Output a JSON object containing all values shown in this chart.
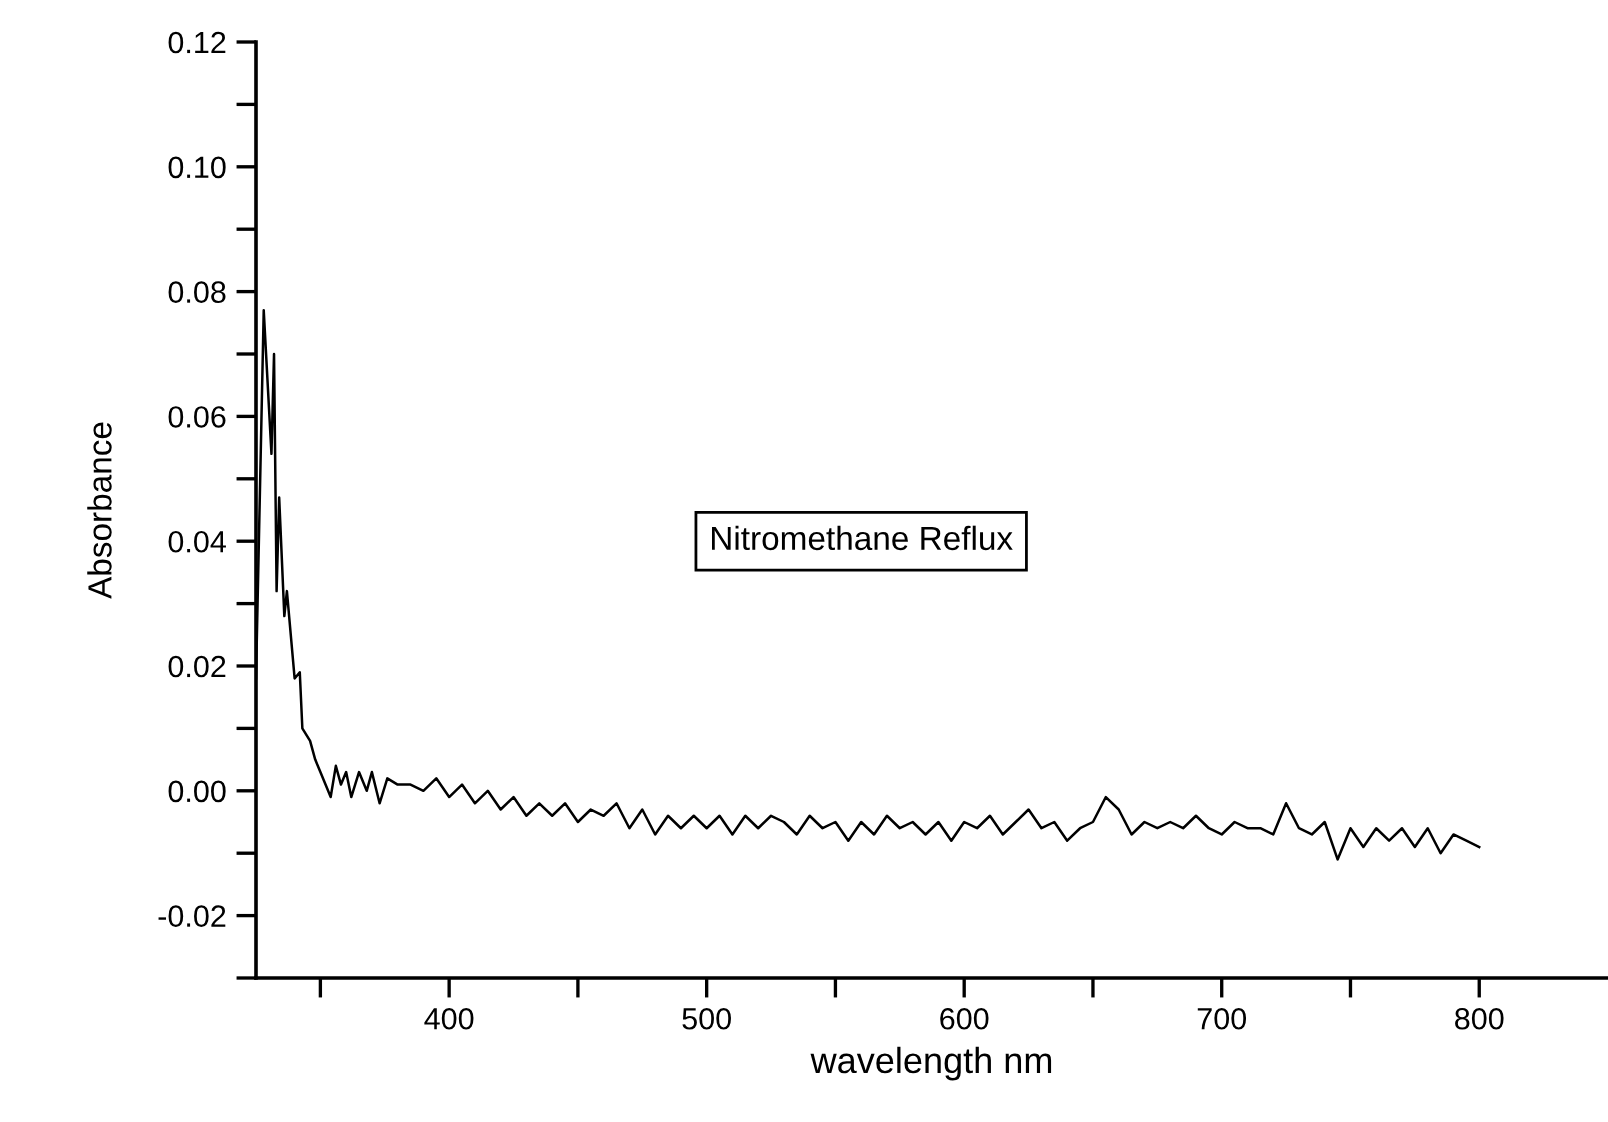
{
  "chart_data": {
    "type": "line",
    "xlabel": "wavelength nm",
    "ylabel": "Absorbance",
    "annotations": [
      "Nitromethane Reflux"
    ],
    "xlim": [
      325,
      850
    ],
    "xticks": [
      {
        "value": 350,
        "label": null
      },
      400,
      {
        "value": 450,
        "label": null
      },
      500,
      {
        "value": 550,
        "label": null
      },
      600,
      {
        "value": 650,
        "label": null
      },
      700,
      {
        "value": 750,
        "label": null
      },
      800
    ],
    "ylim": [
      -0.03,
      0.12
    ],
    "yticks": [
      {
        "value": -0.03,
        "label": null
      },
      -0.02,
      {
        "value": -0.01,
        "label": null
      },
      {
        "value": 0,
        "label": "0.00"
      },
      {
        "value": 0.01,
        "label": null
      },
      0.02,
      {
        "value": 0.03,
        "label": null
      },
      0.04,
      {
        "value": 0.05,
        "label": null
      },
      0.06,
      {
        "value": 0.07,
        "label": null
      },
      0.08,
      {
        "value": 0.09,
        "label": null
      },
      {
        "value": 0.1,
        "label": "0.10"
      },
      {
        "value": 0.11,
        "label": null
      },
      0.12
    ],
    "grid": false,
    "legend": false,
    "marker": "none",
    "line_style": "solid",
    "series": [
      {
        "color": "#000000",
        "x": [
          325,
          328,
          331,
          332,
          333,
          334,
          336,
          337,
          340,
          342,
          343,
          346,
          348,
          350,
          352,
          354,
          356,
          358,
          360,
          362,
          365,
          368,
          370,
          373,
          376,
          380,
          385,
          390,
          395,
          400,
          405,
          410,
          415,
          420,
          425,
          430,
          435,
          440,
          445,
          450,
          455,
          460,
          465,
          470,
          475,
          480,
          485,
          490,
          495,
          500,
          505,
          510,
          515,
          520,
          525,
          530,
          535,
          540,
          545,
          550,
          555,
          560,
          565,
          570,
          575,
          580,
          585,
          590,
          595,
          600,
          605,
          610,
          615,
          620,
          625,
          630,
          635,
          640,
          645,
          650,
          655,
          660,
          665,
          670,
          675,
          680,
          685,
          690,
          695,
          700,
          705,
          710,
          715,
          720,
          725,
          730,
          735,
          740,
          745,
          750,
          755,
          760,
          765,
          770,
          775,
          780,
          785,
          790,
          795,
          800
        ],
        "values": [
          0.018,
          0.077,
          0.054,
          0.07,
          0.032,
          0.047,
          0.028,
          0.032,
          0.018,
          0.019,
          0.01,
          0.008,
          0.005,
          0.003,
          0.001,
          -0.001,
          0.004,
          0.001,
          0.003,
          -0.001,
          0.003,
          0.0,
          0.003,
          -0.002,
          0.002,
          0.001,
          0.001,
          0.0,
          0.002,
          -0.001,
          0.001,
          -0.002,
          0.0,
          -0.003,
          -0.001,
          -0.004,
          -0.002,
          -0.004,
          -0.002,
          -0.005,
          -0.003,
          -0.004,
          -0.002,
          -0.006,
          -0.003,
          -0.007,
          -0.004,
          -0.006,
          -0.004,
          -0.006,
          -0.004,
          -0.007,
          -0.004,
          -0.006,
          -0.004,
          -0.005,
          -0.007,
          -0.004,
          -0.006,
          -0.005,
          -0.008,
          -0.005,
          -0.007,
          -0.004,
          -0.006,
          -0.005,
          -0.007,
          -0.005,
          -0.008,
          -0.005,
          -0.006,
          -0.004,
          -0.007,
          -0.005,
          -0.003,
          -0.006,
          -0.005,
          -0.008,
          -0.006,
          -0.005,
          -0.001,
          -0.003,
          -0.007,
          -0.005,
          -0.006,
          -0.005,
          -0.006,
          -0.004,
          -0.006,
          -0.007,
          -0.005,
          -0.006,
          -0.006,
          -0.007,
          -0.002,
          -0.006,
          -0.007,
          -0.005,
          -0.011,
          -0.006,
          -0.009,
          -0.006,
          -0.008,
          -0.006,
          -0.009,
          -0.006,
          -0.01,
          -0.007,
          -0.008,
          -0.009
        ]
      }
    ]
  }
}
